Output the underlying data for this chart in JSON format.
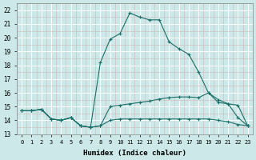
{
  "xlabel": "Humidex (Indice chaleur)",
  "background_color": "#cce8e8",
  "grid_color": "#b0d0d0",
  "line_color": "#1a7068",
  "xlim": [
    -0.5,
    23.5
  ],
  "ylim": [
    13,
    22.5
  ],
  "yticks": [
    13,
    14,
    15,
    16,
    17,
    18,
    19,
    20,
    21,
    22
  ],
  "xticks": [
    0,
    1,
    2,
    3,
    4,
    5,
    6,
    7,
    8,
    9,
    10,
    11,
    12,
    13,
    14,
    15,
    16,
    17,
    18,
    19,
    20,
    21,
    22,
    23
  ],
  "series": [
    [
      14.7,
      14.7,
      14.8,
      14.1,
      14.0,
      14.2,
      13.6,
      13.5,
      18.2,
      19.9,
      20.3,
      21.8,
      21.5,
      21.3,
      21.3,
      19.7,
      19.2,
      18.8,
      17.5,
      16.0,
      15.3,
      15.2,
      14.2,
      13.6
    ],
    [
      14.7,
      14.7,
      14.8,
      14.1,
      14.0,
      14.2,
      13.6,
      13.5,
      13.6,
      15.0,
      15.1,
      15.2,
      15.3,
      15.4,
      15.55,
      15.65,
      15.7,
      15.7,
      15.65,
      16.0,
      15.5,
      15.2,
      15.1,
      13.6
    ],
    [
      14.7,
      14.7,
      14.8,
      14.1,
      14.0,
      14.2,
      13.6,
      13.5,
      13.6,
      14.0,
      14.1,
      14.1,
      14.1,
      14.1,
      14.1,
      14.1,
      14.1,
      14.1,
      14.1,
      14.1,
      14.0,
      13.9,
      13.7,
      13.6
    ]
  ]
}
